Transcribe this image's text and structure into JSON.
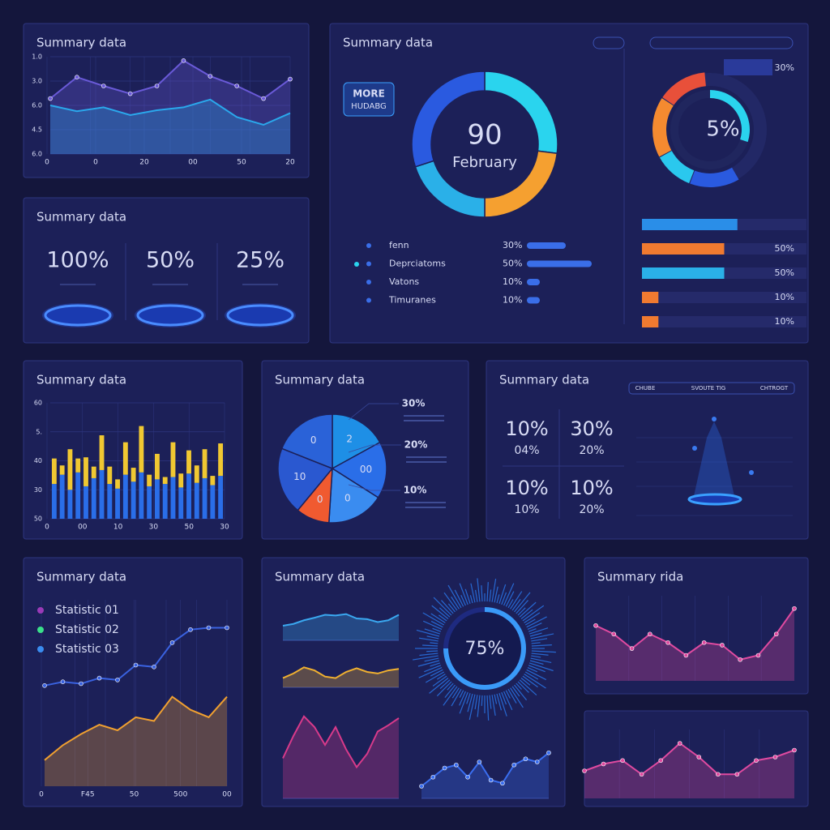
{
  "chart_data": [
    {
      "type": "area",
      "title": "Summary data",
      "ylim": [
        0,
        100
      ],
      "ylabels": [
        "1.0",
        "3.0",
        "6.0",
        "4.5",
        "6.0"
      ],
      "xlabels": [
        "0",
        "0",
        "20",
        "00",
        "50",
        "20"
      ],
      "series": [
        {
          "color": "#6a5ad8",
          "fill": true,
          "markers": true,
          "values": [
            57,
            79,
            70,
            62,
            70,
            96,
            80,
            70,
            57,
            77
          ]
        },
        {
          "color": "#2aa8ec",
          "fill": true,
          "values": [
            50,
            44,
            48,
            40,
            45,
            48,
            56,
            38,
            30,
            42
          ]
        }
      ]
    },
    {
      "type": "stat",
      "title": "Summary data",
      "items": [
        "100%",
        "50%",
        "25%"
      ]
    },
    {
      "type": "donut",
      "title": "Summary data",
      "button": [
        "MORE",
        "HUDABG"
      ],
      "center_value": "90",
      "center_label": "February",
      "segments": {
        "values": [
          27,
          23,
          20,
          30
        ],
        "colors": [
          "#2ad4ee",
          "#f5a030",
          "#2ab0e8",
          "#2a5ae0"
        ]
      },
      "categories": [
        "fenn",
        "Deprciatoms",
        "Vatons",
        "Timuranes"
      ],
      "values": [
        30,
        50,
        10,
        10
      ],
      "value_labels": [
        "30%",
        "50%",
        "10%",
        "10%"
      ],
      "color": "#3a6ee8"
    },
    {
      "type": "gauge",
      "center_label": "5%",
      "inner_value": 30,
      "corner_label": "30%",
      "segments": {
        "values": [
          14,
          11,
          17,
          14
        ],
        "colors": [
          "#2a5ae0",
          "#2ac8ee",
          "#f58a30",
          "#e8503a"
        ]
      },
      "bars": {
        "values": [
          58,
          50,
          50,
          10,
          10
        ],
        "value_labels": [
          null,
          "50%",
          "50%",
          "10%",
          "10%"
        ],
        "colors": [
          "#2a8ee8",
          "#f07a30",
          "#2ab0e8",
          "#f07a30",
          "#f07a30"
        ]
      }
    },
    {
      "type": "bar",
      "title": "Summary data",
      "ylim": [
        0,
        100
      ],
      "ylabels": [
        "60",
        "5.",
        "40",
        "30",
        "50"
      ],
      "xlabels": [
        "0",
        "00",
        "10",
        "30",
        "50",
        "30"
      ],
      "series": [
        {
          "color": "#2a6ee8",
          "values": [
            30,
            38,
            25,
            40,
            28,
            35,
            42,
            30,
            26,
            38,
            32,
            40,
            28,
            34,
            30,
            36,
            27,
            39,
            31,
            35,
            29,
            37
          ]
        },
        {
          "color": "#f0c832",
          "values": [
            22,
            8,
            35,
            12,
            25,
            10,
            30,
            15,
            8,
            28,
            12,
            40,
            10,
            22,
            6,
            30,
            12,
            20,
            15,
            25,
            8,
            28
          ]
        }
      ]
    },
    {
      "type": "pie",
      "title": "Summary data",
      "categories": [
        "2",
        "00",
        "0",
        "0",
        "10",
        "0"
      ],
      "values": [
        17,
        17,
        17,
        10,
        20,
        19
      ],
      "colors": [
        "#1e8fe6",
        "#2a6ee8",
        "#3a8cf0",
        "#f05a30",
        "#2a58d0",
        "#2a62d8"
      ],
      "side_labels": [
        "30%",
        "20%",
        "10%"
      ]
    },
    {
      "type": "stat-grid",
      "title": "Summary data",
      "tabs": [
        "CHUBE",
        "SVOUTE TIG",
        "CHTROGT"
      ],
      "items": [
        {
          "big": "10%",
          "small": "04%"
        },
        {
          "big": "30%",
          "small": "20%"
        },
        {
          "big": "10%",
          "small": "10%"
        },
        {
          "big": "10%",
          "small": "20%"
        }
      ]
    },
    {
      "type": "line",
      "title": "Summary data",
      "ylim": [
        0,
        100
      ],
      "legend": [
        {
          "name": "Statistic 01",
          "color": "#9a3ab8"
        },
        {
          "name": "Statistic 02",
          "color": "#3ae08a"
        },
        {
          "name": "Statistic 03",
          "color": "#3a8cf0"
        }
      ],
      "xlabels": [
        "0",
        "F45",
        "50",
        "500",
        "00"
      ],
      "series": [
        {
          "color": "#3a62e0",
          "markers": true,
          "values": [
            54,
            56,
            55,
            58,
            57,
            65,
            64,
            77,
            84,
            85,
            85
          ]
        },
        {
          "color": "#f0a030",
          "fill": true,
          "values": [
            14,
            22,
            28,
            33,
            30,
            37,
            35,
            48,
            41,
            37,
            48
          ]
        }
      ]
    },
    {
      "type": "sparks",
      "title": "Summary data",
      "ylim": [
        0,
        100
      ],
      "center_label": "75%",
      "ring_value": 75,
      "series": [
        {
          "color": "#3aa8f0",
          "fill": true,
          "values": [
            40,
            45,
            55,
            62,
            70,
            68,
            72,
            60,
            58,
            50,
            55,
            70
          ]
        },
        {
          "color": "#f0b030",
          "fill": true,
          "values": [
            30,
            45,
            65,
            55,
            35,
            30,
            50,
            62,
            50,
            45,
            55,
            60
          ]
        },
        {
          "color": "#d83a8a",
          "fill": true,
          "values": [
            45,
            70,
            92,
            80,
            60,
            80,
            55,
            35,
            50,
            75,
            82,
            90
          ]
        },
        {
          "color": "#3a6ef0",
          "markers": true,
          "fill": true,
          "values": [
            20,
            35,
            50,
            55,
            35,
            60,
            30,
            25,
            55,
            65,
            60,
            75
          ]
        }
      ]
    },
    {
      "type": "line",
      "title": "Summary rida",
      "ylim": [
        0,
        100
      ],
      "series": [
        {
          "color": "#e04aa0",
          "fill": true,
          "markers": true,
          "values": [
            65,
            55,
            38,
            55,
            45,
            30,
            45,
            42,
            25,
            30,
            55,
            85
          ]
        }
      ]
    },
    {
      "type": "line",
      "ylim": [
        0,
        100
      ],
      "series": [
        {
          "color": "#e04aa0",
          "fill": true,
          "markers": true,
          "values": [
            40,
            50,
            55,
            35,
            55,
            80,
            60,
            35,
            35,
            55,
            60,
            70
          ]
        }
      ]
    }
  ]
}
